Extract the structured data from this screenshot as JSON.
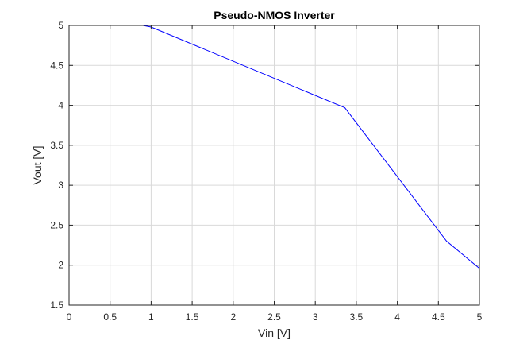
{
  "chart_data": {
    "type": "line",
    "title": "Pseudo-NMOS Inverter",
    "xlabel": "Vin [V]",
    "ylabel": "Vout [V]",
    "xlim": [
      0,
      5
    ],
    "ylim": [
      1.5,
      5
    ],
    "xticks": [
      "0",
      "0.5",
      "1",
      "1.5",
      "2",
      "2.5",
      "3",
      "3.5",
      "4",
      "4.5",
      "5"
    ],
    "yticks": [
      "1.5",
      "2",
      "2.5",
      "3",
      "3.5",
      "4",
      "4.5",
      "5"
    ],
    "grid": true,
    "box": true,
    "series": [
      {
        "color": "#0000ff",
        "x": [
          0,
          0.9,
          1.0,
          3.36,
          4.6,
          5.0
        ],
        "y": [
          5.0,
          5.0,
          4.98,
          3.97,
          2.3,
          1.96
        ]
      }
    ]
  }
}
